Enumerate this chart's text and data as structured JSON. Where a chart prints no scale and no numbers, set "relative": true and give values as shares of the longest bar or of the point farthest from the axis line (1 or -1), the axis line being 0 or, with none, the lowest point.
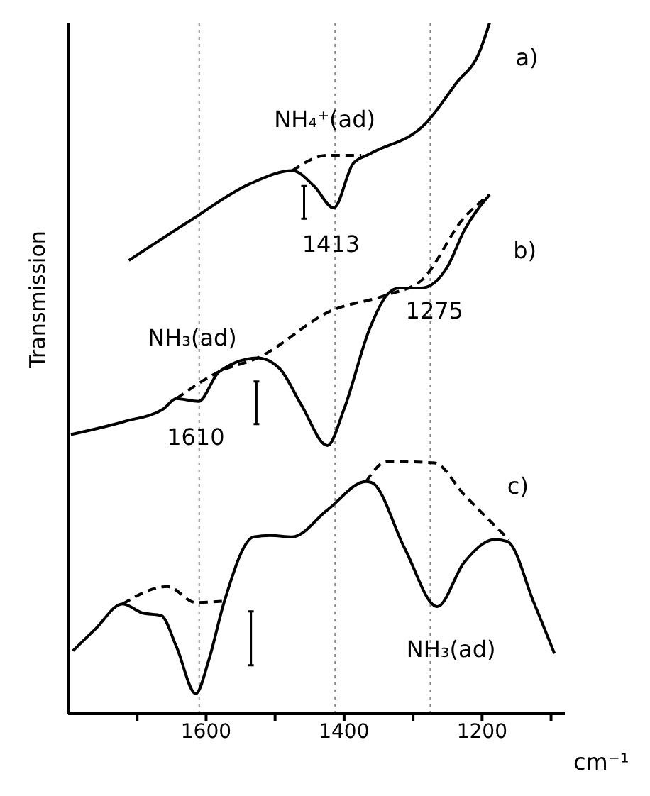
{
  "chart_data": {
    "type": "line",
    "relative": true,
    "ylabel": "Transmission",
    "xlabel": "cm⁻¹",
    "xlim": [
      1800,
      1080
    ],
    "xticks": [
      {
        "value": 1700,
        "label": null
      },
      1600,
      {
        "value": 1500,
        "label": null
      },
      1400,
      {
        "value": 1300,
        "label": null
      },
      1200,
      {
        "value": 1100,
        "label": null
      }
    ],
    "grid": false,
    "legend": false,
    "marker": "none",
    "line_style": "solid",
    "series": [
      {
        "color": "#000000",
        "x": [
          1712,
          1624,
          1536,
          1475,
          1443,
          1415,
          1387,
          1363,
          1282,
          1237,
          1204,
          1189
        ],
        "values": [
          0.656,
          0.713,
          0.767,
          0.786,
          0.763,
          0.732,
          0.796,
          0.81,
          0.854,
          0.913,
          0.957,
          1.0
        ]
      },
      {
        "color": "#000000",
        "line_style": "dashed",
        "x": [
          1475,
          1424,
          1375
        ],
        "values": [
          0.786,
          0.808,
          0.808
        ]
      },
      {
        "color": "#000000",
        "x": [
          1796,
          1718,
          1662,
          1643,
          1611,
          1581,
          1525,
          1493,
          1462,
          1424,
          1400,
          1363,
          1338,
          1320,
          1288,
          1250,
          1226,
          1189
        ],
        "values": [
          0.404,
          0.423,
          0.441,
          0.456,
          0.452,
          0.495,
          0.515,
          0.499,
          0.447,
          0.388,
          0.441,
          0.557,
          0.606,
          0.616,
          0.616,
          0.647,
          0.699,
          0.751
        ]
      },
      {
        "color": "#000000",
        "line_style": "dashed",
        "x": [
          1643,
          1581,
          1525,
          1419,
          1338,
          1288,
          1226,
          1189
        ],
        "values": [
          0.456,
          0.495,
          0.515,
          0.583,
          0.606,
          0.627,
          0.718,
          0.751
        ]
      },
      {
        "color": "#000000",
        "x": [
          1793,
          1761,
          1721,
          1693,
          1665,
          1643,
          1615,
          1596,
          1574,
          1531,
          1507,
          1475,
          1424,
          1368,
          1359,
          1312,
          1265,
          1226,
          1181,
          1163,
          1125,
          1095
        ],
        "values": [
          0.091,
          0.122,
          0.159,
          0.146,
          0.142,
          0.097,
          0.029,
          0.078,
          0.161,
          0.256,
          0.258,
          0.256,
          0.295,
          0.336,
          0.334,
          0.239,
          0.155,
          0.219,
          0.252,
          0.249,
          0.161,
          0.087
        ]
      },
      {
        "color": "#000000",
        "line_style": "dashed",
        "x": [
          1721,
          1656,
          1615,
          1574
        ],
        "values": [
          0.159,
          0.184,
          0.161,
          0.163
        ]
      },
      {
        "color": "#000000",
        "line_style": "dashed",
        "x": [
          1368,
          1338,
          1269,
          1226,
          1161
        ],
        "values": [
          0.336,
          0.365,
          0.363,
          0.317,
          0.252
        ]
      }
    ],
    "ref_lines": [
      {
        "axis": "x",
        "value": 1610,
        "color": "#888888",
        "line_style": "dotted"
      },
      {
        "axis": "x",
        "value": 1413,
        "color": "#888888",
        "line_style": "dotted"
      },
      {
        "axis": "x",
        "value": 1275,
        "color": "#888888",
        "line_style": "dotted"
      }
    ],
    "annotations": [
      "a)",
      "b)",
      "c)",
      "NH₄⁺(ad)",
      {
        "text": "1413",
        "x": 1419,
        "y": 0.68
      },
      "NH₃(ad)",
      {
        "text": "1610",
        "x": 1615,
        "y": 0.4
      },
      {
        "text": "1275",
        "x": 1269,
        "y": 0.583
      },
      "NH₃(ad)"
    ]
  }
}
